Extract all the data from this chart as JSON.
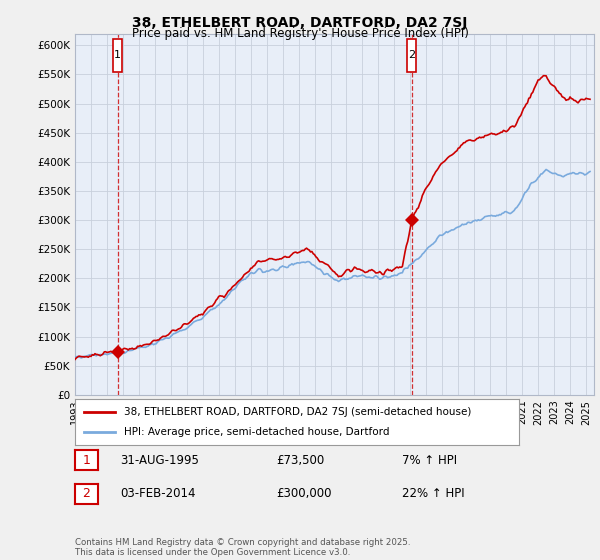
{
  "title_line1": "38, ETHELBERT ROAD, DARTFORD, DA2 7SJ",
  "title_line2": "Price paid vs. HM Land Registry's House Price Index (HPI)",
  "background_color": "#f0f0f0",
  "plot_bg_color": "#e8eef8",
  "grid_color": "#c8d0dc",
  "hpi_color": "#7aaadd",
  "price_color": "#cc0000",
  "ylim": [
    0,
    620000
  ],
  "yticks": [
    0,
    50000,
    100000,
    150000,
    200000,
    250000,
    300000,
    350000,
    400000,
    450000,
    500000,
    550000,
    600000
  ],
  "ytick_labels": [
    "£0",
    "£50K",
    "£100K",
    "£150K",
    "£200K",
    "£250K",
    "£300K",
    "£350K",
    "£400K",
    "£450K",
    "£500K",
    "£550K",
    "£600K"
  ],
  "xlim_start": 1993.0,
  "xlim_end": 2025.5,
  "purchase1_x": 1995.667,
  "purchase1_y": 73500,
  "purchase2_x": 2014.085,
  "purchase2_y": 300000,
  "legend_line1": "38, ETHELBERT ROAD, DARTFORD, DA2 7SJ (semi-detached house)",
  "legend_line2": "HPI: Average price, semi-detached house, Dartford",
  "table_row1": [
    "1",
    "31-AUG-1995",
    "£73,500",
    "7% ↑ HPI"
  ],
  "table_row2": [
    "2",
    "03-FEB-2014",
    "£300,000",
    "22% ↑ HPI"
  ],
  "footnote": "Contains HM Land Registry data © Crown copyright and database right 2025.\nThis data is licensed under the Open Government Licence v3.0."
}
